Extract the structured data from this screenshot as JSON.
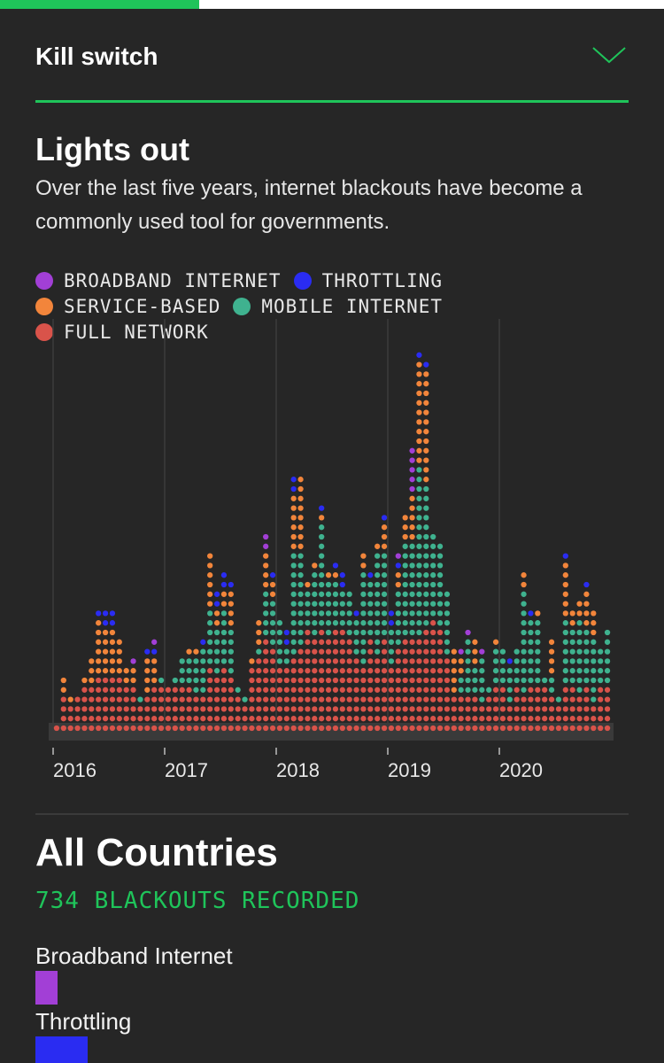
{
  "progress": {
    "fraction": 0.3
  },
  "header": {
    "title": "Kill switch",
    "toggle_icon": "chevron-down-icon",
    "accent": "#1fc45a"
  },
  "chart": {
    "title": "Lights out",
    "subtitle": "Over the last five years, internet blackouts have become a commonly used tool for governments."
  },
  "legend": [
    {
      "label": "BROADBAND INTERNET",
      "color": "#a23fd6"
    },
    {
      "label": "THROTTLING",
      "color": "#2a2cf2"
    },
    {
      "label": "SERVICE-BASED",
      "color": "#f2853b"
    },
    {
      "label": "MOBILE INTERNET",
      "color": "#3fb28f"
    },
    {
      "label": "FULL NETWORK",
      "color": "#d9534a"
    }
  ],
  "chart_data": {
    "type": "bar",
    "x_tick_labels": [
      "2016",
      "2017",
      "2018",
      "2019",
      "2020"
    ],
    "series_order_bottom_to_top": [
      "Full network",
      "Mobile internet",
      "Service-based",
      "Throttling",
      "Broadband internet"
    ],
    "colors": {
      "full": "#d9534a",
      "mobile": "#3fb28f",
      "service": "#f2853b",
      "throttling": "#2a2cf2",
      "broadband": "#a23fd6"
    },
    "columns": [
      [
        0,
        0,
        0,
        0,
        0
      ],
      [
        3,
        0,
        2,
        0,
        0
      ],
      [
        2,
        0,
        1,
        0,
        0
      ],
      [
        3,
        0,
        0,
        0,
        0
      ],
      [
        4,
        0,
        1,
        0,
        0
      ],
      [
        4,
        0,
        3,
        0,
        0
      ],
      [
        5,
        0,
        6,
        1,
        0
      ],
      [
        5,
        0,
        5,
        2,
        0
      ],
      [
        5,
        0,
        5,
        2,
        0
      ],
      [
        5,
        0,
        4,
        0,
        0
      ],
      [
        4,
        0,
        2,
        0,
        0
      ],
      [
        4,
        0,
        2,
        0,
        1
      ],
      [
        2,
        1,
        0,
        0,
        0
      ],
      [
        3,
        0,
        4,
        1,
        0
      ],
      [
        4,
        0,
        3,
        1,
        1
      ],
      [
        4,
        1,
        0,
        0,
        0
      ],
      [
        4,
        0,
        0,
        0,
        0
      ],
      [
        4,
        1,
        0,
        0,
        0
      ],
      [
        4,
        3,
        0,
        0,
        0
      ],
      [
        4,
        3,
        1,
        0,
        0
      ],
      [
        3,
        4,
        1,
        0,
        0
      ],
      [
        3,
        5,
        0,
        1,
        0
      ],
      [
        6,
        6,
        6,
        0,
        0
      ],
      [
        5,
        5,
        2,
        2,
        0
      ],
      [
        6,
        6,
        2,
        2,
        0
      ],
      [
        5,
        5,
        4,
        1,
        0
      ],
      [
        3,
        1,
        0,
        0,
        0
      ],
      [
        2,
        1,
        0,
        0,
        0
      ],
      [
        6,
        0,
        1,
        0,
        0
      ],
      [
        7,
        1,
        3,
        0,
        0
      ],
      [
        9,
        5,
        4,
        0,
        2
      ],
      [
        8,
        5,
        2,
        1,
        0
      ],
      [
        6,
        5,
        0,
        0,
        0
      ],
      [
        6,
        2,
        0,
        2,
        0
      ],
      [
        7,
        11,
        6,
        2,
        0
      ],
      [
        8,
        10,
        8,
        0,
        0
      ],
      [
        10,
        4,
        1,
        0,
        0
      ],
      [
        9,
        7,
        1,
        0,
        0
      ],
      [
        10,
        11,
        1,
        1,
        0
      ],
      [
        9,
        6,
        1,
        0,
        0
      ],
      [
        10,
        5,
        1,
        1,
        0
      ],
      [
        10,
        4,
        0,
        2,
        0
      ],
      [
        9,
        5,
        0,
        0,
        0
      ],
      [
        7,
        4,
        0,
        1,
        0
      ],
      [
        6,
        10,
        2,
        0,
        0
      ],
      [
        9,
        6,
        0,
        1,
        0
      ],
      [
        7,
        11,
        1,
        0,
        0
      ],
      [
        9,
        9,
        3,
        1,
        0
      ],
      [
        6,
        4,
        0,
        2,
        0
      ],
      [
        8,
        6,
        2,
        1,
        1
      ],
      [
        9,
        10,
        3,
        0,
        0
      ],
      [
        9,
        10,
        5,
        0,
        5
      ],
      [
        9,
        18,
        11,
        1,
        0
      ],
      [
        10,
        15,
        12,
        1,
        0
      ],
      [
        11,
        9,
        0,
        0,
        0
      ],
      [
        10,
        9,
        0,
        0,
        0
      ],
      [
        7,
        7,
        0,
        0,
        0
      ],
      [
        3,
        0,
        5,
        0,
        0
      ],
      [
        3,
        2,
        2,
        0,
        1
      ],
      [
        3,
        6,
        0,
        0,
        1
      ],
      [
        3,
        3,
        3,
        0,
        0
      ],
      [
        2,
        5,
        0,
        0,
        1
      ],
      [
        3,
        1,
        0,
        0,
        0
      ],
      [
        4,
        4,
        1,
        0,
        0
      ],
      [
        4,
        4,
        0,
        0,
        0
      ],
      [
        2,
        4,
        0,
        1,
        0
      ],
      [
        4,
        4,
        0,
        0,
        0
      ],
      [
        3,
        11,
        2,
        0,
        0
      ],
      [
        4,
        7,
        0,
        1,
        0
      ],
      [
        4,
        7,
        1,
        0,
        0
      ],
      [
        4,
        1,
        0,
        0,
        0
      ],
      [
        3,
        2,
        4,
        0,
        0
      ],
      [
        2,
        1,
        0,
        0,
        0
      ],
      [
        4,
        7,
        6,
        1,
        0
      ],
      [
        4,
        6,
        2,
        0,
        0
      ],
      [
        3,
        8,
        2,
        0,
        0
      ],
      [
        4,
        6,
        4,
        1,
        0
      ],
      [
        2,
        7,
        3,
        0,
        0
      ],
      [
        4,
        4,
        0,
        0,
        0
      ],
      [
        4,
        6,
        0,
        0,
        0
      ]
    ]
  },
  "summary": {
    "title": "All Countries",
    "count_text": "734 BLACKOUTS RECORDED",
    "breakdown": [
      {
        "label": "Broadband Internet",
        "color": "#a23fd6",
        "share": 0.037
      },
      {
        "label": "Throttling",
        "color": "#2a2cf2",
        "share": 0.088
      }
    ]
  }
}
